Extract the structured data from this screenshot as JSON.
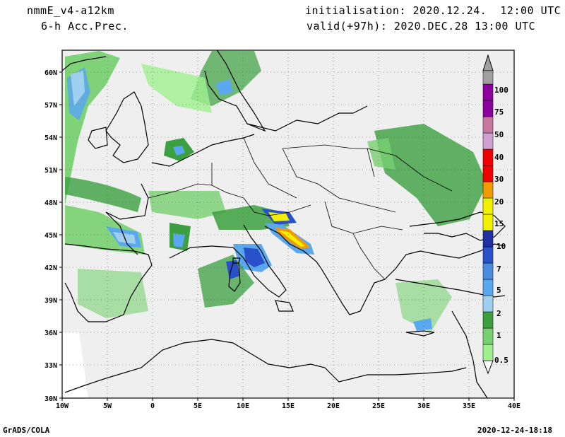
{
  "header": {
    "model": "nmmE_v4-a12km",
    "field": "6-h Acc.Prec.",
    "init": "initialisation: 2020.12.24.  12:00 UTC",
    "valid": "valid(+97h): 2020.DEC.28 13:00 UTC"
  },
  "axes": {
    "lon": [
      "10W",
      "5W",
      "0",
      "5E",
      "10E",
      "15E",
      "20E",
      "25E",
      "30E",
      "35E",
      "40E"
    ],
    "lat": [
      "60N",
      "57N",
      "54N",
      "51N",
      "48N",
      "45N",
      "42N",
      "39N",
      "36N",
      "33N",
      "30N"
    ]
  },
  "legend": {
    "levels": [
      "0.5",
      "1",
      "2",
      "5",
      "7",
      "10",
      "15",
      "20",
      "30",
      "40",
      "50",
      "75",
      "100"
    ],
    "colors": [
      "#a0f090",
      "#78d070",
      "#3ca040",
      "#a0d0f0",
      "#5aa8f0",
      "#2850c8",
      "#f0f000",
      "#f09c00",
      "#f00000",
      "#d0a0d0",
      "#c878a0",
      "#8c00a0",
      "#a0a0a0"
    ]
  },
  "footer": {
    "left": "GrADS/COLA",
    "right": "2020-12-24-18:18"
  }
}
